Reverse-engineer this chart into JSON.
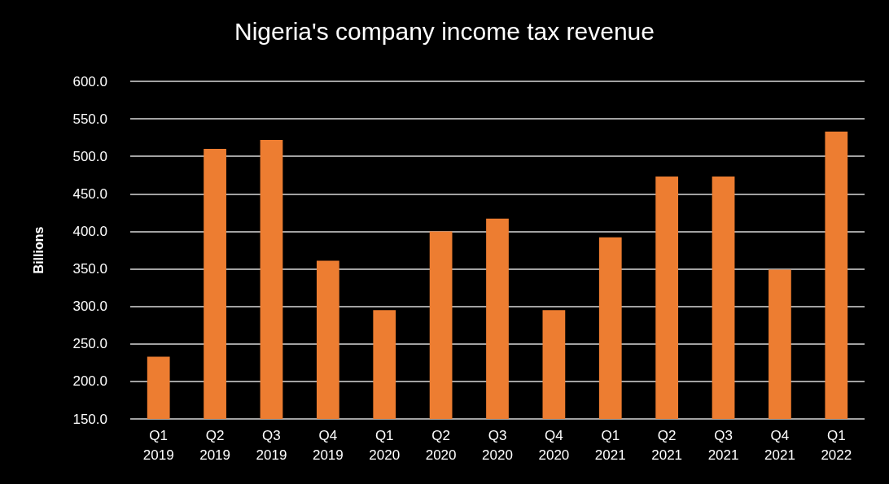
{
  "chart_data": {
    "type": "bar",
    "title": "Nigeria's company income tax revenue",
    "ylabel": "Billions",
    "categories": [
      "Q1\n2019",
      "Q2\n2019",
      "Q3\n2019",
      "Q4\n2019",
      "Q1\n2020",
      "Q2\n2020",
      "Q3\n2020",
      "Q4\n2020",
      "Q1\n2021",
      "Q2\n2021",
      "Q3\n2021",
      "Q4\n2021",
      "Q1\n2022"
    ],
    "values": [
      233,
      510,
      522,
      361,
      295,
      400,
      417,
      295,
      392,
      473,
      473,
      349,
      533
    ],
    "color": "#ed7d31",
    "ylim": [
      150,
      600
    ],
    "yticks": [
      {
        "value": 150,
        "label": "150.0"
      },
      {
        "value": 200,
        "label": "200.0"
      },
      {
        "value": 250,
        "label": "250.0"
      },
      {
        "value": 300,
        "label": "300.0"
      },
      {
        "value": 350,
        "label": "350.0"
      },
      {
        "value": 400,
        "label": "400.0"
      },
      {
        "value": 450,
        "label": "450.0"
      },
      {
        "value": 500,
        "label": "500.0"
      },
      {
        "value": 550,
        "label": "550.0"
      },
      {
        "value": 600,
        "label": "600.0"
      }
    ],
    "grid": "y"
  }
}
